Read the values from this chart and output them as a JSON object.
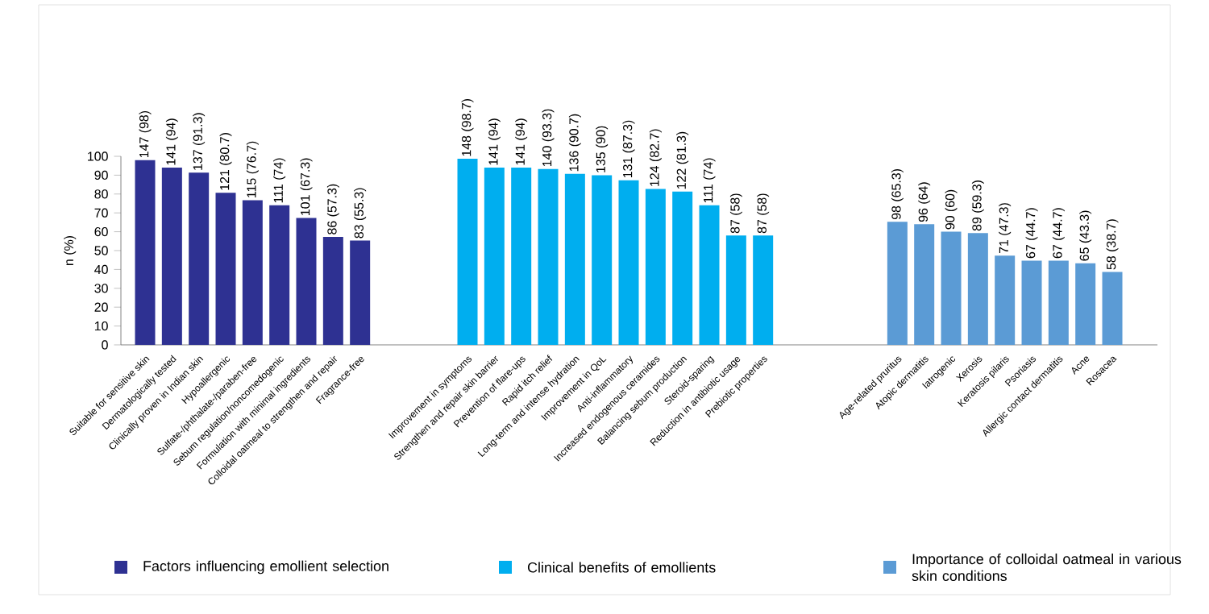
{
  "chart_data": {
    "type": "bar",
    "ylabel": "n (%)",
    "categories": [
      "Suitable for sensitive skin",
      "Dermatologically tested",
      "Clinically proven in Indian skin",
      "Hypoallergenic",
      "Sulfate-/phthalate-/paraben-free",
      "Sebum regulation/noncomedogenic",
      "Formulation with minimal ingredients",
      "Colloidal oatmeal to strengthen and repair",
      "Fragrance-free",
      null,
      null,
      null,
      "Improvement in symptoms",
      "Strengthen and repair skin barrier",
      "Prevention of flare-ups",
      "Rapid itch relief",
      "Long-term and intense hydration",
      "Improvement in QoL",
      "Anti-inflammatory",
      "Increased endogenous ceramides",
      "Balancing sebum production",
      "Steroid-sparing",
      "Reduction in antibiotic usage",
      "Prebiotic properties",
      null,
      null,
      null,
      null,
      "Age-related pruritus",
      "Atopic dermatitis",
      "Iatrogenic",
      "Xerosis",
      "Keratosis pilaris",
      "Psoriasis",
      "Allergic contact dermatitis",
      "Acne",
      "Rosacea"
    ],
    "series": [
      {
        "name": "Factors influencing emollient selection",
        "color": "#2e3192",
        "values": [
          98,
          94,
          91.3,
          80.7,
          76.7,
          74,
          67.3,
          57.3,
          55.3,
          null,
          null,
          null,
          null,
          null,
          null,
          null,
          null,
          null,
          null,
          null,
          null,
          null,
          null,
          null,
          null,
          null,
          null,
          null,
          null,
          null,
          null,
          null,
          null,
          null,
          null,
          null,
          null
        ],
        "value_labels": [
          "147 (98)",
          "141 (94)",
          "137 (91.3)",
          "121 (80.7)",
          "115 (76.7)",
          "111 (74)",
          "101 (67.3)",
          "86 (57.3)",
          "83 (55.3)",
          null,
          null,
          null,
          null,
          null,
          null,
          null,
          null,
          null,
          null,
          null,
          null,
          null,
          null,
          null,
          null,
          null,
          null,
          null,
          null,
          null,
          null,
          null,
          null,
          null,
          null,
          null,
          null
        ]
      },
      {
        "name": "Clinical benefits of emollients",
        "color": "#00aeef",
        "values": [
          null,
          null,
          null,
          null,
          null,
          null,
          null,
          null,
          null,
          null,
          null,
          null,
          98.7,
          94,
          94,
          93.3,
          90.7,
          90,
          87.3,
          82.7,
          81.3,
          74,
          58,
          58,
          null,
          null,
          null,
          null,
          null,
          null,
          null,
          null,
          null,
          null,
          null,
          null,
          null
        ],
        "value_labels": [
          null,
          null,
          null,
          null,
          null,
          null,
          null,
          null,
          null,
          null,
          null,
          null,
          "148 (98.7)",
          "141 (94)",
          "141 (94)",
          "140 (93.3)",
          "136 (90.7)",
          "135 (90)",
          "131 (87.3)",
          "124 (82.7)",
          "122 (81.3)",
          "111 (74)",
          "87 (58)",
          "87 (58)",
          null,
          null,
          null,
          null,
          null,
          null,
          null,
          null,
          null,
          null,
          null,
          null,
          null
        ]
      },
      {
        "name": "Importance of colloidal oatmeal in various skin conditions",
        "color": "#5b9bd5",
        "values": [
          null,
          null,
          null,
          null,
          null,
          null,
          null,
          null,
          null,
          null,
          null,
          null,
          null,
          null,
          null,
          null,
          null,
          null,
          null,
          null,
          null,
          null,
          null,
          null,
          null,
          null,
          null,
          null,
          65.3,
          64,
          60,
          59.3,
          47.3,
          44.7,
          44.7,
          43.3,
          38.7
        ],
        "value_labels": [
          null,
          null,
          null,
          null,
          null,
          null,
          null,
          null,
          null,
          null,
          null,
          null,
          null,
          null,
          null,
          null,
          null,
          null,
          null,
          null,
          null,
          null,
          null,
          null,
          null,
          null,
          null,
          null,
          "98 (65.3)",
          "96 (64)",
          "90 (60)",
          "89 (59.3)",
          "71 (47.3)",
          "67 (44.7)",
          "67 (44.7)",
          "65 (43.3)",
          "58 (38.7)"
        ]
      }
    ],
    "ylim": [
      0,
      100
    ],
    "yticks": [
      0,
      10,
      20,
      30,
      40,
      50,
      60,
      70,
      80,
      90,
      100
    ],
    "legend": "bottom"
  }
}
